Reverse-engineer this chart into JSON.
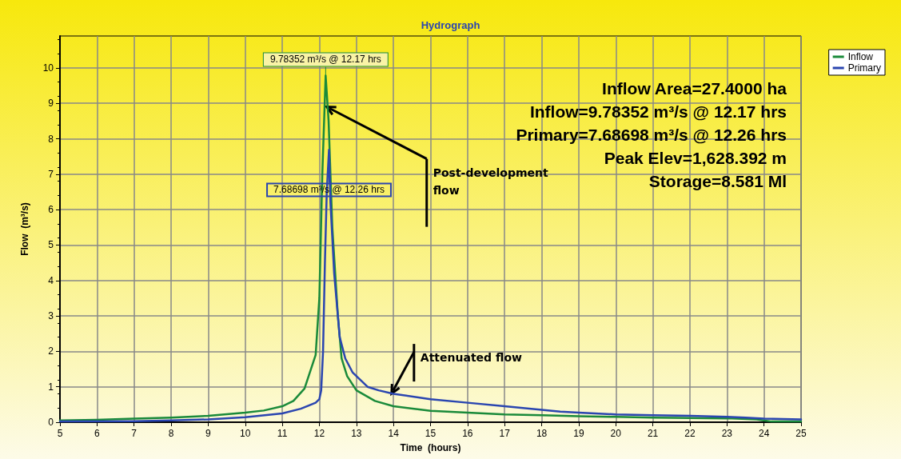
{
  "chart_data": {
    "type": "line",
    "title": "Hydrograph",
    "xlabel": "Time  (hours)",
    "ylabel": "Flow  (m³/s)",
    "xlim": [
      5,
      25
    ],
    "xticks": [
      5,
      6,
      7,
      8,
      9,
      10,
      11,
      12,
      13,
      14,
      15,
      16,
      17,
      18,
      19,
      20,
      21,
      22,
      23,
      24,
      25
    ],
    "ylim": [
      0,
      10.9
    ],
    "yticks": [
      0,
      1,
      2,
      3,
      4,
      5,
      6,
      7,
      8,
      9,
      10
    ],
    "grid": true,
    "legend": "top right",
    "marker": "none",
    "line_style": "solid",
    "series": [
      {
        "name": "Inflow",
        "color": "#1a8a3a",
        "x": [
          5,
          6,
          7,
          8,
          9,
          10,
          10.5,
          11,
          11.3,
          11.6,
          11.9,
          12.0,
          12.08,
          12.17,
          12.25,
          12.35,
          12.5,
          12.6,
          12.75,
          13,
          13.5,
          14,
          15,
          16,
          17,
          18,
          19,
          20,
          21,
          22,
          23,
          23.8,
          24.2,
          25
        ],
        "values": [
          0.05,
          0.07,
          0.1,
          0.13,
          0.18,
          0.27,
          0.33,
          0.45,
          0.6,
          0.95,
          1.9,
          3.5,
          7,
          9.78352,
          8.5,
          5.5,
          3,
          1.8,
          1.3,
          0.9,
          0.6,
          0.45,
          0.32,
          0.27,
          0.22,
          0.2,
          0.17,
          0.15,
          0.13,
          0.12,
          0.11,
          0.08,
          0.02,
          0.02
        ]
      },
      {
        "name": "Primary",
        "color": "#2a45b0",
        "x": [
          5,
          7,
          8,
          9,
          10,
          11,
          11.5,
          11.9,
          12.0,
          12.05,
          12.1,
          12.15,
          12.2,
          12.26,
          12.3,
          12.4,
          12.55,
          12.7,
          12.9,
          13.3,
          13.6,
          14,
          15,
          16,
          17,
          18,
          18.5,
          19,
          20,
          21,
          22,
          23,
          23.5,
          24,
          25
        ],
        "values": [
          0.02,
          0.03,
          0.05,
          0.08,
          0.14,
          0.25,
          0.38,
          0.55,
          0.65,
          0.9,
          2,
          4.5,
          6.5,
          7.68698,
          6.2,
          4.2,
          2.4,
          1.8,
          1.4,
          1.0,
          0.9,
          0.8,
          0.65,
          0.55,
          0.45,
          0.35,
          0.3,
          0.27,
          0.22,
          0.2,
          0.18,
          0.15,
          0.13,
          0.1,
          0.08
        ]
      }
    ],
    "annotations": [
      {
        "text": "9.78352 m³/s @ 12.17 hrs",
        "x": 12.17,
        "y": 9.78352
      },
      {
        "text": "7.68698 m³/s @ 12.26 hrs",
        "x": 12.26,
        "y": 7.68698
      },
      {
        "text": "Post-development flow",
        "x": 12.2,
        "y": 8.9
      },
      {
        "text": "Attenuated flow",
        "x": 13.95,
        "y": 0.81
      },
      "Inflow Area=27.4000 ha",
      "Inflow=9.78352 m³/s @ 12.17 hrs",
      "Primary=7.68698 m³/s @ 12.26 hrs",
      "Peak Elev=1,628.392 m",
      "Storage=8.581 Ml"
    ]
  }
}
